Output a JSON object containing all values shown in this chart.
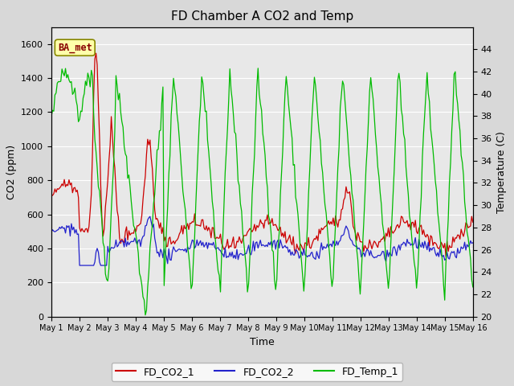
{
  "title": "FD Chamber A CO2 and Temp",
  "xlabel": "Time",
  "ylabel_left": "CO2 (ppm)",
  "ylabel_right": "Temperature (C)",
  "legend_labels": [
    "FD_CO2_1",
    "FD_CO2_2",
    "FD_Temp_1"
  ],
  "legend_colors": [
    "#cc0000",
    "#2222cc",
    "#00bb00"
  ],
  "annotation_text": "BA_met",
  "annotation_color": "#880000",
  "annotation_bg": "#ffffaa",
  "ylim_left": [
    0,
    1700
  ],
  "ylim_right": [
    20,
    46
  ],
  "yticks_left": [
    0,
    200,
    400,
    600,
    800,
    1000,
    1200,
    1400,
    1600
  ],
  "yticks_right": [
    20,
    22,
    24,
    26,
    28,
    30,
    32,
    34,
    36,
    38,
    40,
    42,
    44
  ],
  "bg_color": "#d8d8d8",
  "plot_bg": "#e8e8e8",
  "grid_color": "#ffffff",
  "title_fontsize": 11,
  "seed": 42
}
